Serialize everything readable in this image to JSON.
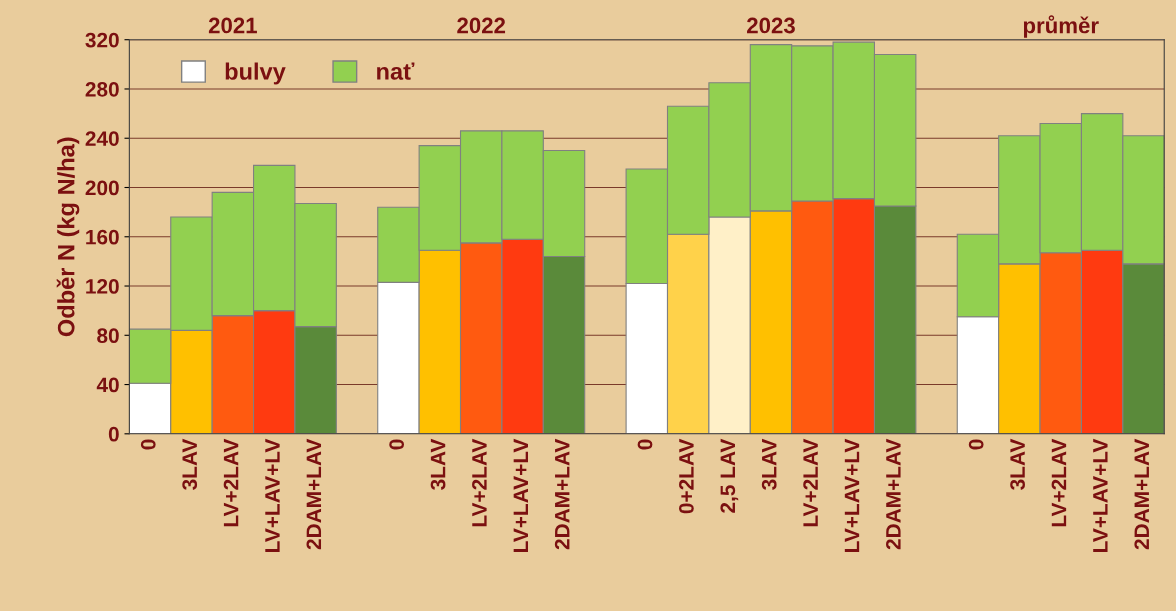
{
  "chart_data": {
    "type": "bar",
    "stacked": true,
    "ylabel": "Odběr N (kg N/ha)",
    "categories": [
      "0",
      "3LAV",
      "LV+2LAV",
      "LV+LAV+LV",
      "2DAM+LAV",
      null,
      "0",
      "3LAV",
      "LV+2LAV",
      "LV+LAV+LV",
      "2DAM+LAV",
      null,
      "0",
      "0+2LAV",
      "2,5 LAV",
      "3LAV",
      "LV+2LAV",
      "LV+LAV+LV",
      "2DAM+LAV",
      null,
      "0",
      "3LAV",
      "LV+2LAV",
      "LV+LAV+LV",
      "2DAM+LAV"
    ],
    "series": [
      {
        "name": "bulvy",
        "color": "#ffffff",
        "colors": [
          "#ffffff",
          "#ffc000",
          "#ff5a10",
          "#ff3a10",
          "#5a8a3a",
          null,
          "#ffffff",
          "#ffc000",
          "#ff5a10",
          "#ff3a10",
          "#5a8a3a",
          null,
          "#ffffff",
          "#ffd24a",
          "#fff0c8",
          "#ffc000",
          "#ff5a10",
          "#ff3a10",
          "#5a8a3a",
          null,
          "#ffffff",
          "#ffc000",
          "#ff5a10",
          "#ff3a10",
          "#5a8a3a"
        ],
        "values": [
          41,
          84,
          96,
          100,
          87,
          null,
          123,
          149,
          155,
          158,
          144,
          null,
          122,
          162,
          176,
          181,
          189,
          191,
          185,
          null,
          95,
          138,
          147,
          149,
          138
        ]
      },
      {
        "name": "nať",
        "color": "#92d050",
        "values": [
          44,
          92,
          100,
          118,
          100,
          null,
          61,
          85,
          91,
          88,
          86,
          null,
          93,
          104,
          109,
          135,
          126,
          127,
          123,
          null,
          67,
          104,
          105,
          111,
          104
        ]
      }
    ],
    "ylim": [
      0,
      320
    ],
    "yticks": [
      0,
      40,
      80,
      120,
      160,
      200,
      240,
      280,
      320
    ],
    "grid": "y",
    "legend": "top left",
    "annotations": [
      "2021",
      "2022",
      "2023",
      "průměr"
    ]
  }
}
